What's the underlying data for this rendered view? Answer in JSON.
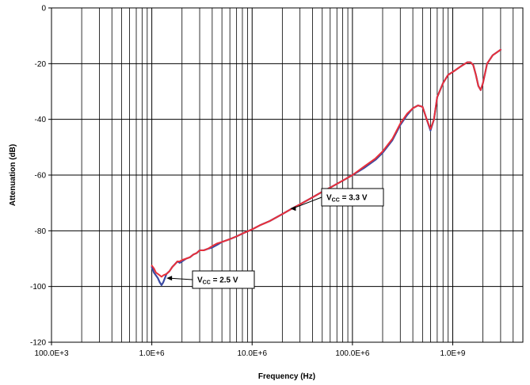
{
  "chart_data": {
    "type": "line",
    "title": "",
    "xlabel": "Frequency (Hz)",
    "ylabel": "Attenuation (dB)",
    "x_scale": "log",
    "xlim": [
      100000,
      5000000000
    ],
    "ylim": [
      -120,
      0
    ],
    "x_ticks": [
      {
        "value": 100000,
        "label": "100.0E+3"
      },
      {
        "value": 1000000,
        "label": "1.0E+6"
      },
      {
        "value": 10000000,
        "label": "10.0E+6"
      },
      {
        "value": 100000000,
        "label": "100.0E+6"
      },
      {
        "value": 1000000000,
        "label": "1.0E+9"
      }
    ],
    "y_ticks": [
      {
        "value": 0,
        "label": "0"
      },
      {
        "value": -20,
        "label": "-20"
      },
      {
        "value": -40,
        "label": "-40"
      },
      {
        "value": -60,
        "label": "-60"
      },
      {
        "value": -80,
        "label": "-80"
      },
      {
        "value": -100,
        "label": "-100"
      },
      {
        "value": -120,
        "label": "-120"
      }
    ],
    "grid": true,
    "legend": "none",
    "series": [
      {
        "color": "#3b4aa3",
        "points": [
          [
            1000000,
            -93
          ],
          [
            1050000,
            -95
          ],
          [
            1100000,
            -96
          ],
          [
            1150000,
            -97
          ],
          [
            1200000,
            -98.5
          ],
          [
            1250000,
            -99.5
          ],
          [
            1300000,
            -98.5
          ],
          [
            1350000,
            -97
          ],
          [
            1400000,
            -95.5
          ],
          [
            1500000,
            -94.5
          ],
          [
            1600000,
            -93
          ],
          [
            1700000,
            -92
          ],
          [
            1800000,
            -91
          ],
          [
            1900000,
            -91.5
          ],
          [
            2000000,
            -91
          ],
          [
            2200000,
            -90
          ],
          [
            2400000,
            -89.5
          ],
          [
            2600000,
            -88.5
          ],
          [
            2800000,
            -88
          ],
          [
            3000000,
            -87
          ],
          [
            3300000,
            -87
          ],
          [
            3600000,
            -86.5
          ],
          [
            4000000,
            -86
          ],
          [
            4500000,
            -85
          ],
          [
            5000000,
            -84
          ],
          [
            6000000,
            -83
          ],
          [
            7000000,
            -82
          ],
          [
            8000000,
            -81
          ],
          [
            10000000,
            -79.5
          ],
          [
            12000000,
            -78
          ],
          [
            15000000,
            -76.5
          ],
          [
            20000000,
            -74
          ],
          [
            25000000,
            -72
          ],
          [
            30000000,
            -70.5
          ],
          [
            40000000,
            -68
          ],
          [
            50000000,
            -66
          ],
          [
            60000000,
            -64.5
          ],
          [
            80000000,
            -62
          ],
          [
            100000000,
            -60
          ],
          [
            130000000,
            -57.5
          ],
          [
            170000000,
            -54.5
          ],
          [
            200000000,
            -52
          ],
          [
            250000000,
            -47.5
          ],
          [
            300000000,
            -42
          ],
          [
            350000000,
            -38.5
          ],
          [
            400000000,
            -36
          ],
          [
            450000000,
            -35
          ],
          [
            500000000,
            -35.5
          ],
          [
            550000000,
            -40
          ],
          [
            600000000,
            -44
          ],
          [
            650000000,
            -40
          ],
          [
            700000000,
            -32
          ],
          [
            800000000,
            -27
          ],
          [
            900000000,
            -24
          ],
          [
            1000000000,
            -23
          ],
          [
            1200000000,
            -21
          ],
          [
            1400000000,
            -19.5
          ],
          [
            1500000000,
            -19.5
          ],
          [
            1600000000,
            -20.5
          ],
          [
            1700000000,
            -24
          ],
          [
            1800000000,
            -28
          ],
          [
            1900000000,
            -29.5
          ],
          [
            2000000000,
            -27
          ],
          [
            2200000000,
            -20
          ],
          [
            2500000000,
            -17
          ],
          [
            3000000000,
            -15
          ]
        ]
      },
      {
        "color": "#e8303a",
        "points": [
          [
            1000000,
            -92.5
          ],
          [
            1050000,
            -93.5
          ],
          [
            1100000,
            -95
          ],
          [
            1150000,
            -95.5
          ],
          [
            1200000,
            -96
          ],
          [
            1250000,
            -96.5
          ],
          [
            1300000,
            -96
          ],
          [
            1400000,
            -95.5
          ],
          [
            1500000,
            -94.5
          ],
          [
            1600000,
            -93
          ],
          [
            1700000,
            -92
          ],
          [
            1800000,
            -91
          ],
          [
            1900000,
            -91
          ],
          [
            2000000,
            -90.5
          ],
          [
            2200000,
            -90
          ],
          [
            2400000,
            -89.5
          ],
          [
            2600000,
            -88.5
          ],
          [
            2800000,
            -88
          ],
          [
            3000000,
            -87
          ],
          [
            3300000,
            -87
          ],
          [
            3600000,
            -86.5
          ],
          [
            4000000,
            -85.5
          ],
          [
            4500000,
            -84.5
          ],
          [
            5000000,
            -84
          ],
          [
            6000000,
            -83
          ],
          [
            7000000,
            -82
          ],
          [
            8000000,
            -81
          ],
          [
            10000000,
            -79.5
          ],
          [
            12000000,
            -78
          ],
          [
            15000000,
            -76.5
          ],
          [
            20000000,
            -74
          ],
          [
            25000000,
            -72
          ],
          [
            30000000,
            -70.5
          ],
          [
            40000000,
            -68
          ],
          [
            50000000,
            -66
          ],
          [
            60000000,
            -64.5
          ],
          [
            80000000,
            -62
          ],
          [
            100000000,
            -60
          ],
          [
            130000000,
            -57
          ],
          [
            170000000,
            -54
          ],
          [
            200000000,
            -51.5
          ],
          [
            250000000,
            -47
          ],
          [
            300000000,
            -41.5
          ],
          [
            350000000,
            -38
          ],
          [
            400000000,
            -36
          ],
          [
            450000000,
            -35
          ],
          [
            500000000,
            -35.5
          ],
          [
            550000000,
            -40
          ],
          [
            600000000,
            -43.5
          ],
          [
            650000000,
            -40
          ],
          [
            700000000,
            -32
          ],
          [
            800000000,
            -27
          ],
          [
            900000000,
            -24
          ],
          [
            1000000000,
            -23
          ],
          [
            1200000000,
            -21
          ],
          [
            1400000000,
            -19.5
          ],
          [
            1500000000,
            -19.5
          ],
          [
            1600000000,
            -20.5
          ],
          [
            1700000000,
            -24
          ],
          [
            1800000000,
            -28
          ],
          [
            1900000000,
            -29.5
          ],
          [
            2000000000,
            -27
          ],
          [
            2200000000,
            -20
          ],
          [
            2500000000,
            -17
          ],
          [
            3000000000,
            -15
          ]
        ]
      }
    ],
    "annotations": [
      {
        "main": "V",
        "sub": "CC",
        "rest": " = 3.3 V",
        "point": [
          24000000,
          -72
        ]
      },
      {
        "main": "V",
        "sub": "CC",
        "rest": " = 2.5 V",
        "point": [
          1400000,
          -97
        ]
      }
    ]
  }
}
